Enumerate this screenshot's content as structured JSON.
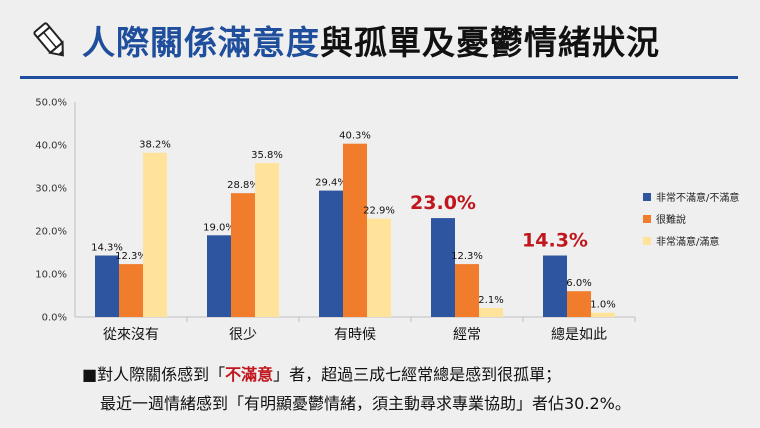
{
  "title": {
    "part1": "人際關係滿意度",
    "part2": "與孤單及憂鬱情緒狀況"
  },
  "colors": {
    "title_blue": "#1f4e9d",
    "highlight_red": "#c0161d"
  },
  "icon": "pencil-icon",
  "chart_data": {
    "type": "bar",
    "categories": [
      "從來沒有",
      "很少",
      "有時候",
      "經常",
      "總是如此"
    ],
    "ylim": [
      0,
      50
    ],
    "yticks": [
      "0.0%",
      "10.0%",
      "20.0%",
      "30.0%",
      "40.0%",
      "50.0%"
    ],
    "grid": false,
    "legend_position": "right",
    "series": [
      {
        "name": "非常不滿意/不滿意",
        "color": "#2d55a0",
        "values": [
          14.3,
          19.0,
          29.4,
          23.0,
          14.3
        ],
        "labels": [
          "14.3%",
          "19.0%",
          "29.4%",
          "23.0%",
          "14.3%"
        ]
      },
      {
        "name": "很難說",
        "color": "#f07c2c",
        "values": [
          12.3,
          28.8,
          40.3,
          12.3,
          6.0
        ],
        "labels": [
          "12.3%",
          "28.8%",
          "40.3%",
          "12.3%",
          "6.0%"
        ]
      },
      {
        "name": "非常滿意/滿意",
        "color": "#ffe39a",
        "values": [
          38.2,
          35.8,
          22.9,
          2.1,
          1.0
        ],
        "labels": [
          "38.2%",
          "35.8%",
          "22.9%",
          "2.1%",
          "1.0%"
        ]
      }
    ],
    "highlighted_labels": [
      [
        0,
        3
      ],
      [
        0,
        4
      ]
    ]
  },
  "footer": {
    "bullet": "■",
    "line1_a": "對人際關係感到「",
    "line1_red": "不滿意",
    "line1_b": "」者，超過三成七經常總是感到很孤單；",
    "line2": "最近一週情緒感到「有明顯憂鬱情緒，須主動尋求專業協助」者佔30.2%。"
  }
}
